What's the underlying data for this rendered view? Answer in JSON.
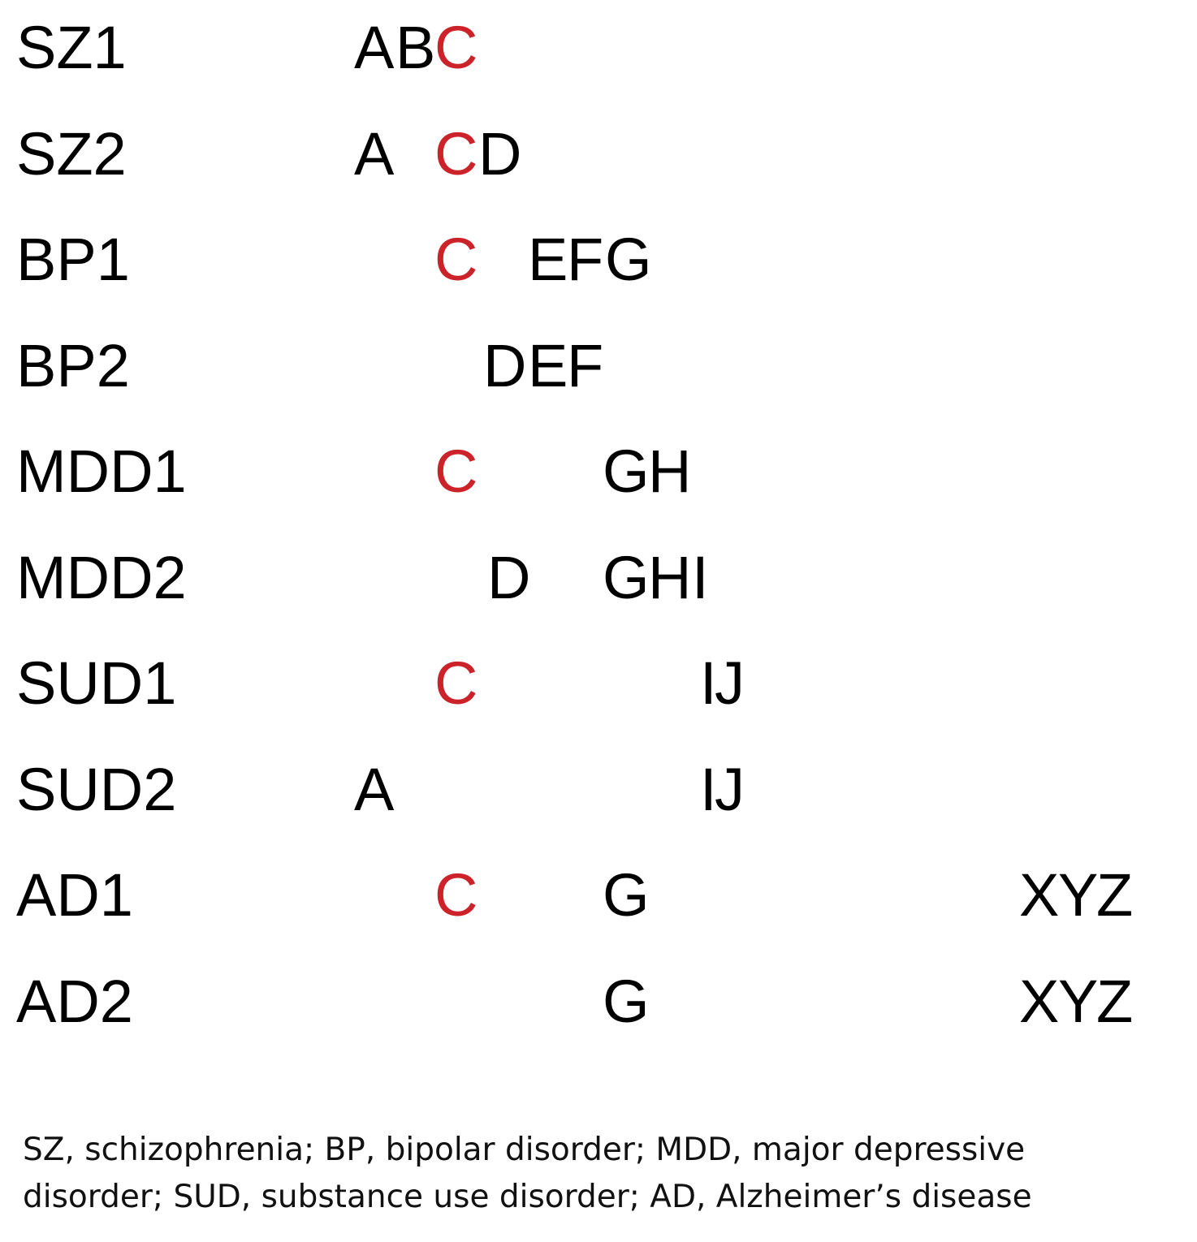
{
  "highlight_color": "#cc2229",
  "text_color": "#000000",
  "rows": [
    {
      "label": "SZ1",
      "letters": [
        {
          "ch": "A",
          "col": 0
        },
        {
          "ch": "B",
          "col": 1
        },
        {
          "ch": "C",
          "col": 2,
          "highlight": true
        }
      ]
    },
    {
      "label": "SZ2",
      "letters": [
        {
          "ch": "A",
          "col": 0
        },
        {
          "ch": "C",
          "col": 2,
          "highlight": true
        },
        {
          "ch": "D",
          "col": 3
        }
      ]
    },
    {
      "label": "BP1",
      "letters": [
        {
          "ch": "C",
          "col": 2,
          "highlight": true
        },
        {
          "ch": "E",
          "col": 4
        },
        {
          "ch": "F",
          "col": 5
        },
        {
          "ch": "G",
          "col": 6
        }
      ]
    },
    {
      "label": "BP2",
      "letters": [
        {
          "ch": "D",
          "col": 3
        },
        {
          "ch": "E",
          "col": 4
        },
        {
          "ch": "F",
          "col": 5
        }
      ]
    },
    {
      "label": "MDD1",
      "letters": [
        {
          "ch": "C",
          "col": 2,
          "highlight": true
        },
        {
          "ch": "G",
          "col": 6
        },
        {
          "ch": "H",
          "col": 7
        }
      ]
    },
    {
      "label": "MDD2",
      "letters": [
        {
          "ch": "D",
          "col": 3
        },
        {
          "ch": "G",
          "col": 6
        },
        {
          "ch": "H",
          "col": 7
        },
        {
          "ch": "I",
          "col": 8
        }
      ]
    },
    {
      "label": "SUD1",
      "letters": [
        {
          "ch": "C",
          "col": 2,
          "highlight": true
        },
        {
          "ch": "I",
          "col": 8
        },
        {
          "ch": "J",
          "col": 9
        }
      ]
    },
    {
      "label": "SUD2",
      "letters": [
        {
          "ch": "A",
          "col": 0
        },
        {
          "ch": "I",
          "col": 8
        },
        {
          "ch": "J",
          "col": 9
        }
      ]
    },
    {
      "label": "AD1",
      "letters": [
        {
          "ch": "C",
          "col": 2,
          "highlight": true
        },
        {
          "ch": "G",
          "col": 6
        },
        {
          "ch": "X",
          "col": 10
        },
        {
          "ch": "Y",
          "col": 11
        },
        {
          "ch": "Z",
          "col": 12
        }
      ]
    },
    {
      "label": "AD2",
      "letters": [
        {
          "ch": "G",
          "col": 6
        },
        {
          "ch": "X",
          "col": 10
        },
        {
          "ch": "Y",
          "col": 11
        },
        {
          "ch": "Z",
          "col": 12
        }
      ]
    }
  ],
  "caption": {
    "line1": "SZ, schizophrenia; BP, bipolar disorder; MDD, major depressive",
    "line2": "disorder; SUD, substance use disorder; AD, Alzheimer’s disease"
  }
}
